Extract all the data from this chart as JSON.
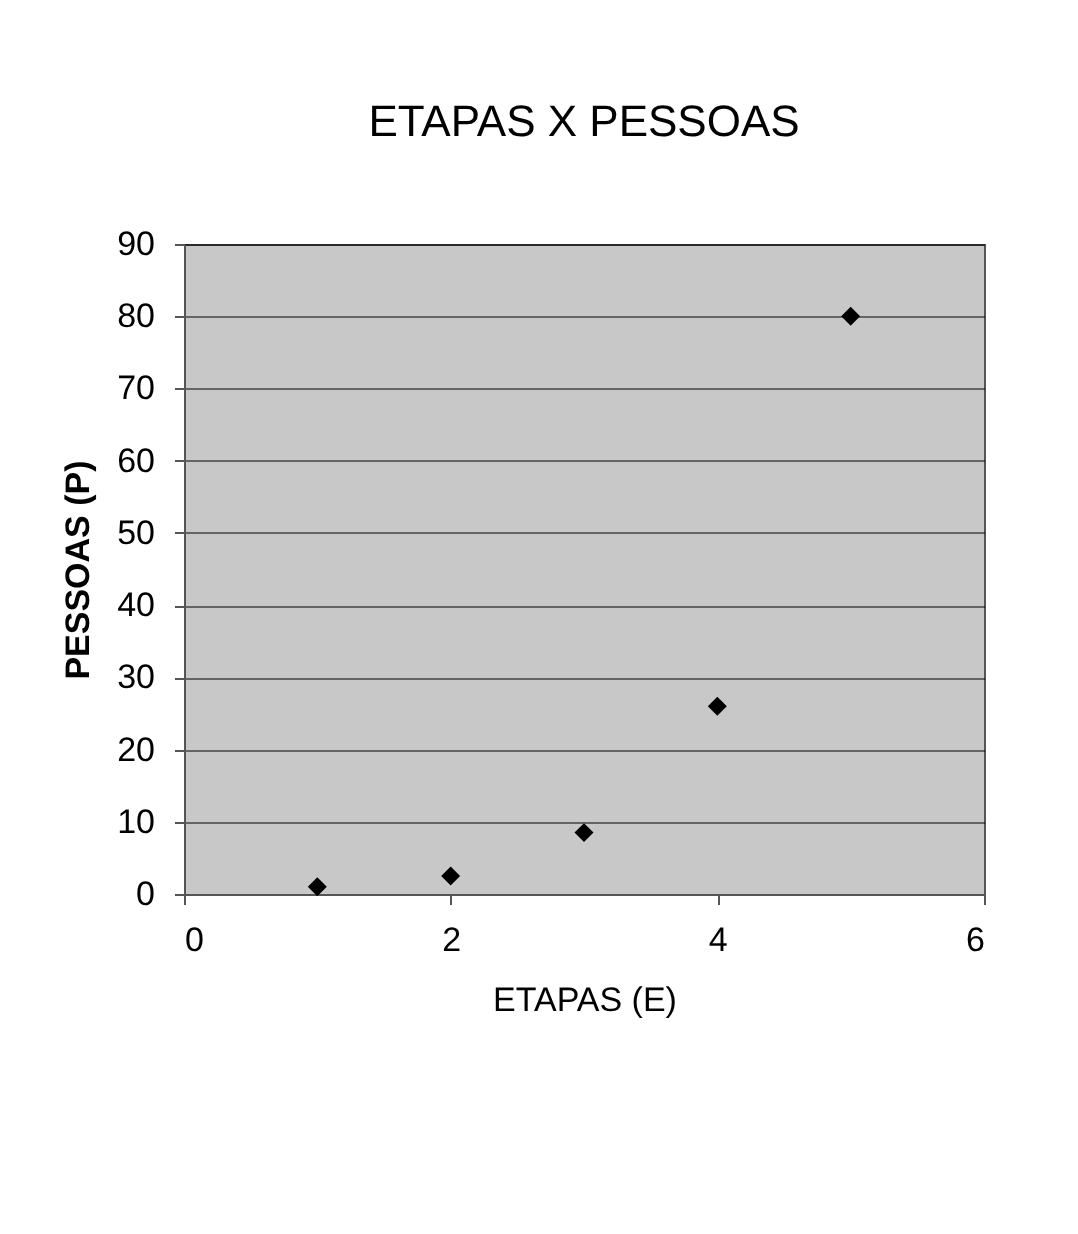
{
  "chart_data": {
    "type": "scatter",
    "title": "ETAPAS X PESSOAS",
    "xlabel": "ETAPAS (E)",
    "ylabel": "PESSOAS (P)",
    "x": [
      1,
      2,
      3,
      4,
      5
    ],
    "series": [
      {
        "color": "#000000",
        "values": [
          1,
          2.5,
          8.5,
          26,
          80
        ]
      }
    ],
    "xlim": [
      0,
      6
    ],
    "xticks": [
      0,
      2,
      4,
      6
    ],
    "ylim": [
      0,
      90
    ],
    "yticks": [
      0,
      10,
      20,
      30,
      40,
      50,
      60,
      70,
      80,
      90
    ],
    "grid": "y",
    "marker": "diamond"
  }
}
